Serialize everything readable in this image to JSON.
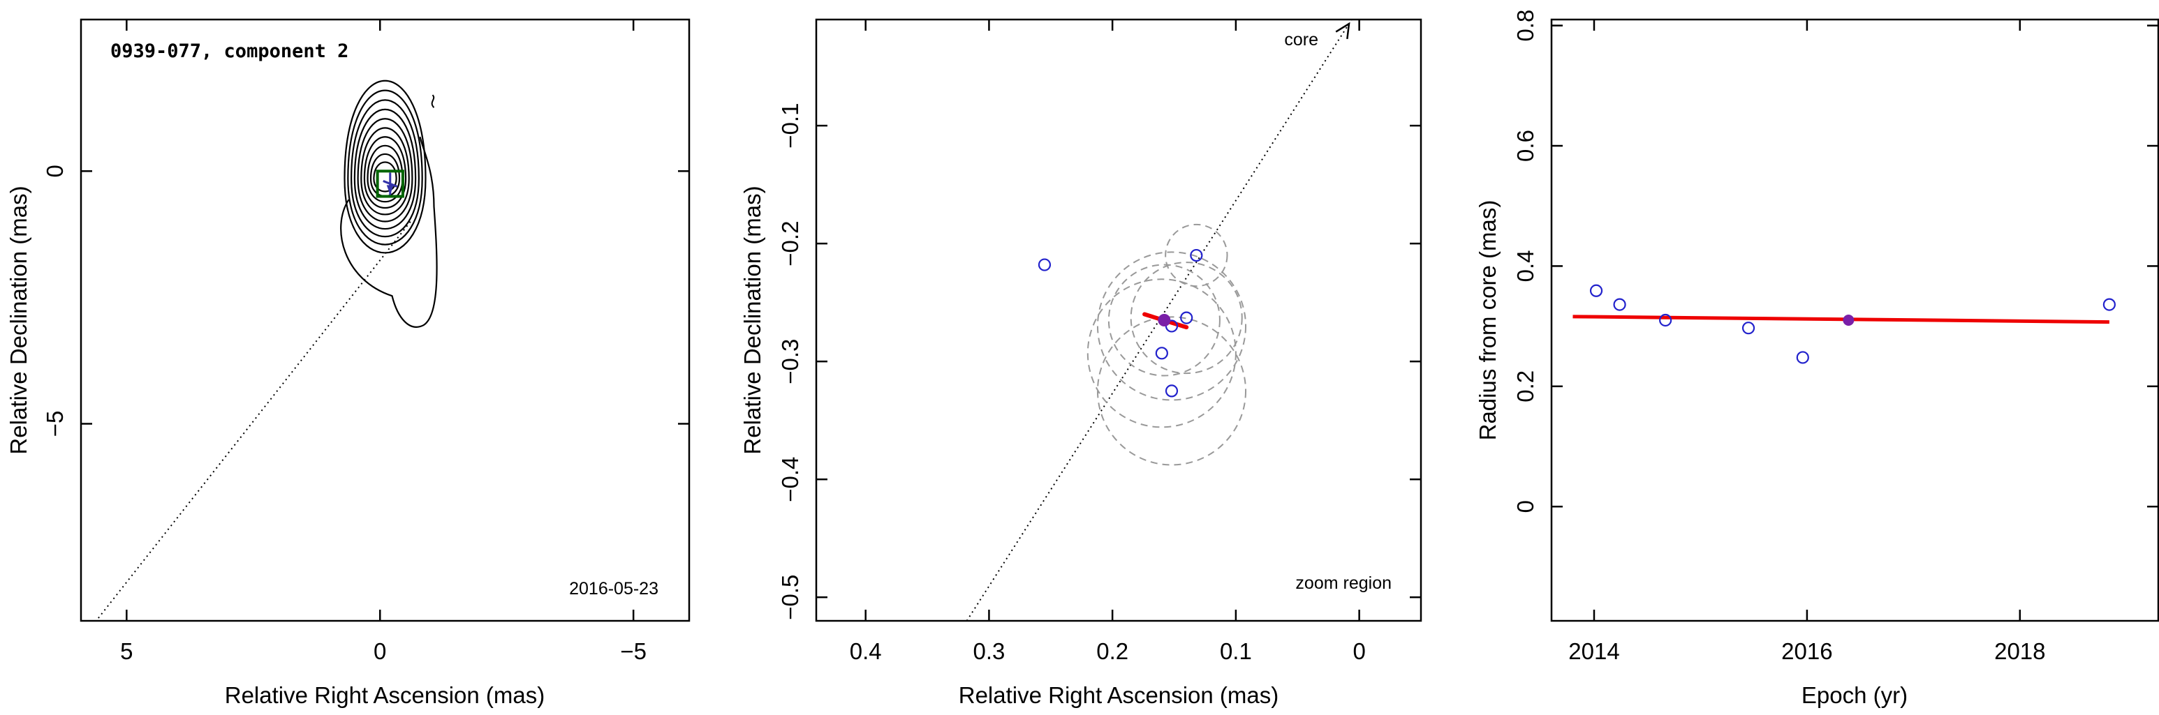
{
  "chart_data": [
    {
      "type": "contour",
      "title": "0939-077, component 2",
      "annotation": "2016-05-23",
      "xlabel": "Relative Right Ascension (mas)",
      "ylabel": "Relative Declination (mas)",
      "xlim": [
        5.9,
        -6.1
      ],
      "ylim": [
        -8.9,
        3.0
      ],
      "xticks": [
        5,
        0,
        -5
      ],
      "yticks": [
        0,
        -5
      ],
      "xtick_labels": [
        "5",
        "0",
        "−5"
      ],
      "ytick_labels": [
        "0",
        "−5"
      ],
      "component": {
        "x": -0.2,
        "y": -0.25
      },
      "component_box": {
        "x": [
          -0.45,
          0.05
        ],
        "y": [
          -0.5,
          0.0
        ]
      },
      "contour_peak": {
        "x": -0.1,
        "y": -0.15
      },
      "contour_levels": 10,
      "direction_line": {
        "x": [
          -0.6,
          5.6
        ],
        "y": [
          -1.0,
          -8.9
        ]
      },
      "colors": {
        "contour": "#000000",
        "box": "#006400",
        "marker": "#3333aa",
        "line": "#000000"
      }
    },
    {
      "type": "scatter",
      "annotations": [
        "core",
        "zoom region"
      ],
      "xlabel": "Relative Right Ascension (mas)",
      "ylabel": "Relative Declination (mas)",
      "xlim": [
        0.44,
        -0.05
      ],
      "ylim": [
        -0.52,
        -0.01
      ],
      "xticks": [
        0.4,
        0.3,
        0.2,
        0.1,
        0
      ],
      "yticks": [
        -0.1,
        -0.2,
        -0.3,
        -0.4,
        -0.5
      ],
      "xtick_labels": [
        "0.4",
        "0.3",
        "0.2",
        "0.1",
        "0"
      ],
      "ytick_labels": [
        "−0.1",
        "−0.2",
        "−0.3",
        "−0.4",
        "−0.5"
      ],
      "points": [
        {
          "x": 0.255,
          "y": -0.218
        },
        {
          "x": 0.132,
          "y": -0.21
        },
        {
          "x": 0.14,
          "y": -0.263
        },
        {
          "x": 0.152,
          "y": -0.27
        },
        {
          "x": 0.16,
          "y": -0.293
        },
        {
          "x": 0.152,
          "y": -0.325
        }
      ],
      "highlight_point": {
        "x": 0.158,
        "y": -0.265
      },
      "error_circles": [
        {
          "x": 0.132,
          "y": -0.21,
          "r": 0.025
        },
        {
          "x": 0.14,
          "y": -0.263,
          "r": 0.045
        },
        {
          "x": 0.152,
          "y": -0.27,
          "r": 0.06
        },
        {
          "x": 0.16,
          "y": -0.293,
          "r": 0.06
        },
        {
          "x": 0.152,
          "y": -0.325,
          "r": 0.06
        },
        {
          "x": 0.158,
          "y": -0.265,
          "r": 0.045
        }
      ],
      "fit_line": {
        "x": [
          0.174,
          0.14
        ],
        "y": [
          -0.26,
          -0.271
        ]
      },
      "direction_line": {
        "x": [
          0.318,
          -0.0
        ],
        "y": [
          -0.52,
          0.0
        ]
      },
      "colors": {
        "points": "#2222cc",
        "highlight": "#7a1fa8",
        "circles": "#999999",
        "fit": "#ee0000",
        "line": "#000000"
      }
    },
    {
      "type": "scatter",
      "xlabel": "Epoch (yr)",
      "ylabel": "Radius from core (mas)",
      "xlim": [
        2013.6,
        2019.3
      ],
      "ylim": [
        -0.19,
        0.81
      ],
      "xticks": [
        2014,
        2016,
        2018
      ],
      "yticks": [
        0,
        0.2,
        0.4,
        0.6,
        0.8
      ],
      "xtick_labels": [
        "2014",
        "2016",
        "2018"
      ],
      "ytick_labels": [
        "0",
        "0.2",
        "0.4",
        "0.6",
        "0.8"
      ],
      "points": [
        {
          "x": 2014.02,
          "y": 0.359
        },
        {
          "x": 2014.24,
          "y": 0.336
        },
        {
          "x": 2014.67,
          "y": 0.31
        },
        {
          "x": 2015.45,
          "y": 0.297
        },
        {
          "x": 2015.96,
          "y": 0.248
        },
        {
          "x": 2018.84,
          "y": 0.336
        }
      ],
      "highlight_point": {
        "x": 2016.39,
        "y": 0.31
      },
      "fit_line": {
        "x": [
          2013.8,
          2018.84
        ],
        "y": [
          0.316,
          0.307
        ]
      },
      "colors": {
        "points": "#2222cc",
        "highlight": "#7a1fa8",
        "fit": "#ee0000"
      }
    }
  ]
}
